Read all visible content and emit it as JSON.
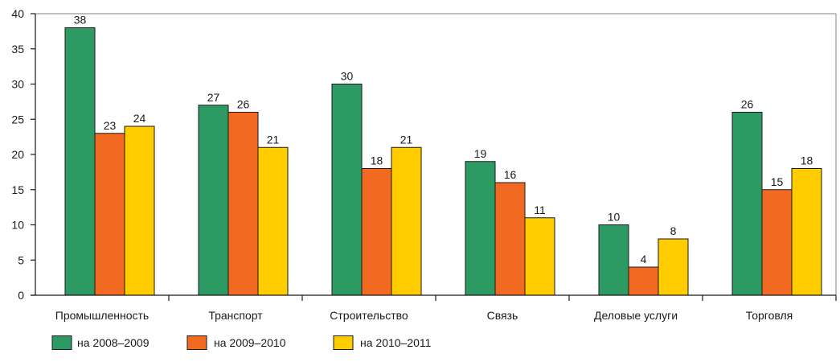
{
  "chart_data": {
    "type": "bar",
    "title": "",
    "xlabel": "",
    "ylabel": "",
    "ylim": [
      0,
      40
    ],
    "yticks": [
      0,
      5,
      10,
      15,
      20,
      25,
      30,
      35,
      40
    ],
    "grid": false,
    "legend_position": "bottom-left",
    "categories": [
      "Промышленность",
      "Транспорт",
      "Строительство",
      "Связь",
      "Деловые услуги",
      "Торговля"
    ],
    "series": [
      {
        "name": "на  2008–2009",
        "color": "#2e9a63",
        "values": [
          38,
          27,
          30,
          19,
          10,
          26
        ]
      },
      {
        "name": "на 2009–2010",
        "color": "#f26a22",
        "values": [
          23,
          26,
          18,
          16,
          4,
          15
        ]
      },
      {
        "name": "на 2010–2011",
        "color": "#ffcc00",
        "values": [
          24,
          21,
          21,
          11,
          8,
          18
        ]
      }
    ]
  }
}
